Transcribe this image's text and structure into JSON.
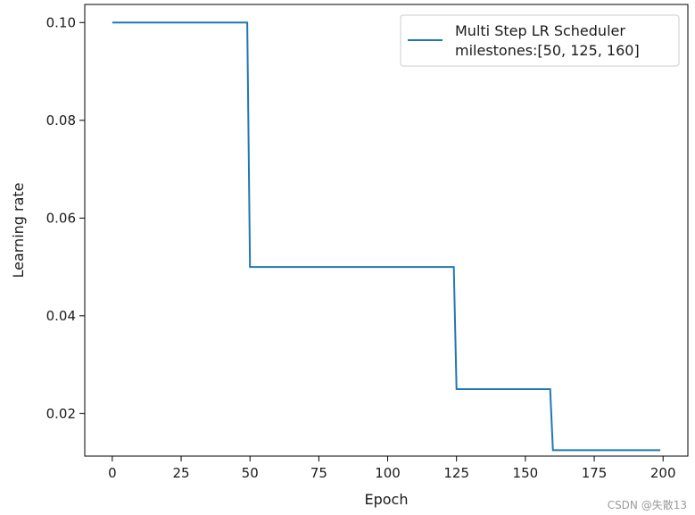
{
  "chart_data": {
    "type": "line",
    "xlabel": "Epoch",
    "ylabel": "Learning rate",
    "xlim": [
      -10,
      209
    ],
    "ylim": [
      0.0113,
      0.1037
    ],
    "xticks": [
      0,
      25,
      50,
      75,
      100,
      125,
      150,
      175,
      200
    ],
    "xtick_labels": [
      "0",
      "25",
      "50",
      "75",
      "100",
      "125",
      "150",
      "175",
      "200"
    ],
    "yticks": [
      0.02,
      0.04,
      0.06,
      0.08,
      0.1
    ],
    "ytick_labels": [
      "0.02",
      "0.04",
      "0.06",
      "0.08",
      "0.10"
    ],
    "grid": false,
    "legend_position": "top-right",
    "series": [
      {
        "name": "Multi Step LR Scheduler\nmilestones:[50, 125, 160]",
        "name_lines": [
          "Multi Step LR Scheduler",
          "milestones:[50, 125, 160]"
        ],
        "color": "#1f77b4",
        "x": [
          0,
          49,
          50,
          124,
          125,
          159,
          160,
          199
        ],
        "y": [
          0.1,
          0.1,
          0.05,
          0.05,
          0.025,
          0.025,
          0.0125,
          0.0125
        ]
      }
    ]
  },
  "watermark": "CSDN @失散13"
}
